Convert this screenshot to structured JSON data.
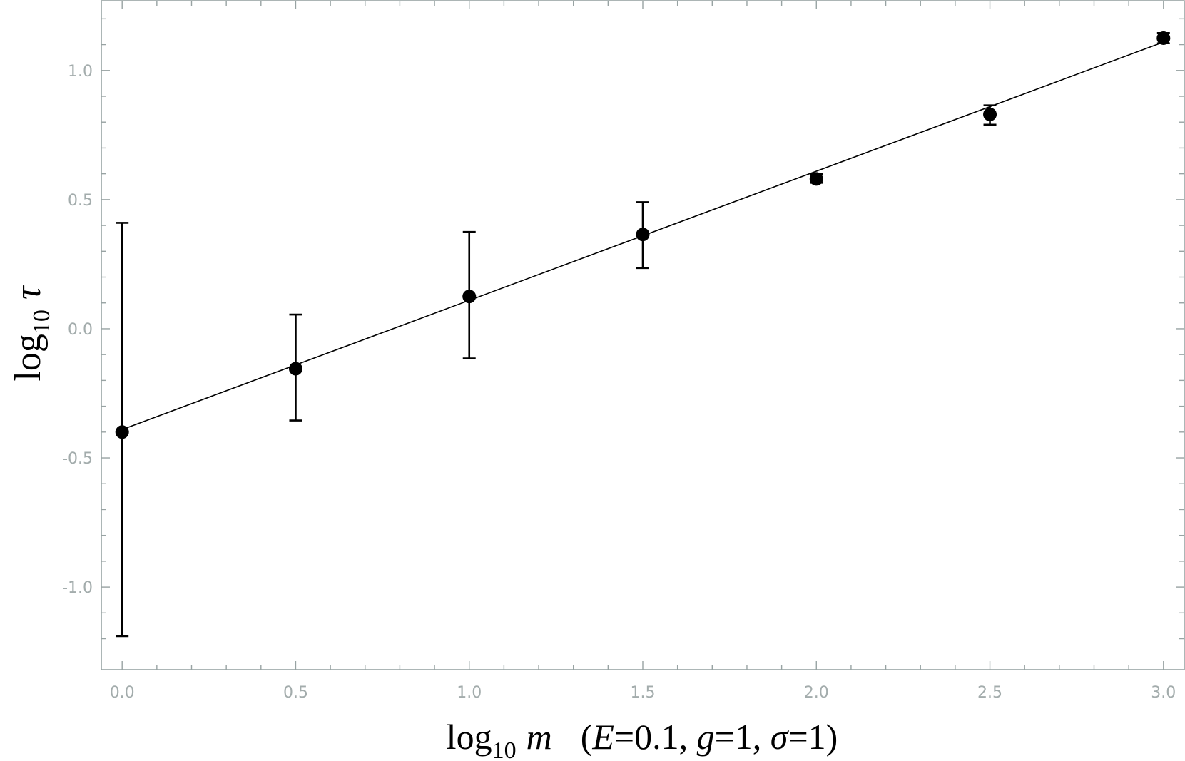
{
  "chart_data": {
    "type": "scatter",
    "title": "",
    "xlabel": {
      "main": "log",
      "sub": "10",
      "var": "m",
      "params_prefix": "(",
      "E_sym": "E",
      "E_val": "=0.1, ",
      "g_sym": "g",
      "g_val": "=1, ",
      "sigma_sym": "σ",
      "sigma_val": "=1)"
    },
    "ylabel": {
      "main": "log",
      "sub": "10",
      "var": "τ"
    },
    "xlim": [
      -0.06,
      3.06
    ],
    "ylim": [
      -1.32,
      1.27
    ],
    "xticks": [
      0.0,
      0.5,
      1.0,
      1.5,
      2.0,
      2.5,
      3.0
    ],
    "xtick_labels": [
      "0.0",
      "0.5",
      "1.0",
      "1.5",
      "2.0",
      "2.5",
      "3.0"
    ],
    "yticks": [
      -1.0,
      -0.5,
      0.0,
      0.5,
      1.0
    ],
    "ytick_labels": [
      "-1.0",
      "-0.5",
      "0.0",
      "0.5",
      "1.0"
    ],
    "grid": false,
    "points": [
      {
        "x": 0.0,
        "y": -0.4,
        "ylow": -1.19,
        "yhigh": 0.41
      },
      {
        "x": 0.5,
        "y": -0.155,
        "ylow": -0.355,
        "yhigh": 0.055
      },
      {
        "x": 1.0,
        "y": 0.125,
        "ylow": -0.115,
        "yhigh": 0.375
      },
      {
        "x": 1.5,
        "y": 0.365,
        "ylow": 0.235,
        "yhigh": 0.49
      },
      {
        "x": 2.0,
        "y": 0.58,
        "ylow": 0.565,
        "yhigh": 0.6
      },
      {
        "x": 2.5,
        "y": 0.83,
        "ylow": 0.79,
        "yhigh": 0.865
      },
      {
        "x": 3.0,
        "y": 1.125,
        "ylow": 1.105,
        "yhigh": 1.145
      }
    ],
    "fit_line": {
      "x": [
        0.0,
        3.0
      ],
      "y": [
        -0.39,
        1.11
      ]
    },
    "colors": {
      "points": "#000000",
      "line": "#000000",
      "axes": "#98a3a3",
      "tick_labels": "#a3acac"
    }
  }
}
